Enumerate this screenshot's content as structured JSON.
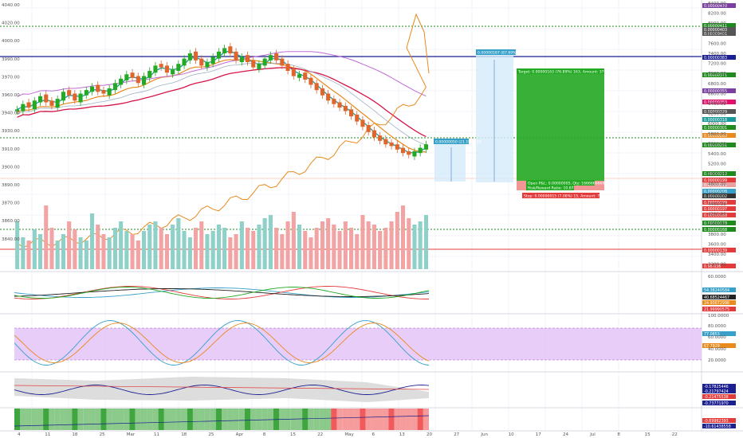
{
  "price_scale": {
    "ticks": [
      "8400.00",
      "8200.00",
      "8000.00",
      "7800.00",
      "7600.00",
      "7400.00",
      "7200.00",
      "7000.00",
      "6800.00",
      "6600.00",
      "6400.00",
      "6200.00",
      "6000.00",
      "5800.00",
      "5600.00",
      "5400.00",
      "5200.00",
      "5000.00",
      "4800.00",
      "4600.00",
      "4400.00",
      "4200.00",
      "4000.00",
      "3800.00",
      "3600.00",
      "3400.00",
      "3200.00"
    ],
    "left_ticks": [
      "4040.00",
      "4020.00",
      "4000.00",
      "3990.00",
      "3970.00",
      "3960.00",
      "3940.00",
      "3930.00",
      "3910.00",
      "3900.00",
      "3890.00",
      "3870.00",
      "3860.00",
      "3840.00"
    ]
  },
  "x_axis": [
    "4",
    "11",
    "18",
    "25",
    "Mar",
    "11",
    "18",
    "25",
    "Apr",
    "8",
    "15",
    "22",
    "May",
    "6",
    "13",
    "20",
    "27",
    "Jun",
    "10",
    "17",
    "24",
    "Jul",
    "8",
    "15",
    "22"
  ],
  "price_labels": [
    {
      "text": "0.00000470",
      "color": "#7b3fa0"
    },
    {
      "text": "0.00000411",
      "color": "#1e8a1e"
    },
    {
      "text": "0.00000403",
      "color": "#555555"
    },
    {
      "text": "0.00000401",
      "color": "#555555"
    },
    {
      "text": "0.00000383",
      "color": "#1b1f8f"
    },
    {
      "text": "0.00000371",
      "color": "#1e8a1e"
    },
    {
      "text": "0.00000355",
      "color": "#7b3fa0"
    },
    {
      "text": "0.00000350",
      "color": "#e0116a"
    },
    {
      "text": "0.00000329",
      "color": "#555555"
    },
    {
      "text": "0.00000318",
      "color": "#1a9a9a"
    },
    {
      "text": "0.00000301",
      "color": "#1e8a1e"
    },
    {
      "text": "0.00000280",
      "color": "#e88a1c"
    },
    {
      "text": "0.00000251",
      "color": "#1e8a1e"
    },
    {
      "text": "0.00000212",
      "color": "#1e8a1e"
    },
    {
      "text": "0.00000199",
      "color": "#e33b3b"
    },
    {
      "text": "0.00000211",
      "color": "#e8a0a0"
    },
    {
      "text": "0.00000208",
      "color": "#36a0c9"
    },
    {
      "text": "0.00000202",
      "color": "#333333"
    },
    {
      "text": "0.00000199",
      "color": "#e33b3b"
    },
    {
      "text": "0.00000197",
      "color": "#e33b3b"
    },
    {
      "text": "0.00000188",
      "color": "#e33b3b"
    },
    {
      "text": "0.00000178",
      "color": "#1e8a1e"
    },
    {
      "text": "0.00000168",
      "color": "#1e8a1e"
    },
    {
      "text": "0.00000139",
      "color": "#e33b3b"
    },
    {
      "text": "0.98.036",
      "color": "#e33b3b"
    }
  ],
  "positions": {
    "target": {
      "text": "Target: 0.00000163 (76.89%) 163, Amount: 3716.67"
    },
    "open_pnl": {
      "text": "Open P&L: 0.00000005, Qty: 1666666666"
    },
    "rr": {
      "text": "Risk/Reward Ratio: 10.87"
    },
    "stop": {
      "text": "Stop: 0.00000015 (7.08%) 15, Amount: 750"
    },
    "measure_big": {
      "text": "0.00000187 (87.69%) 187"
    },
    "measure_small": {
      "text": "0.00000050 (21.19%) 50"
    }
  },
  "indicators": {
    "pane1_labels": [
      {
        "text": "54.38240584",
        "color": "#36a0c9"
      },
      {
        "text": "40.68524467",
        "color": "#222222"
      },
      {
        "text": "24.93672996",
        "color": "#e88a1c"
      },
      {
        "text": "21.99990575",
        "color": "#e33b3b"
      }
    ],
    "pane1_ticks": [
      "60.0000"
    ],
    "pane2_labels": [
      {
        "text": "77.0853",
        "color": "#36a0c9"
      },
      {
        "text": "67.7929",
        "color": "#e88a1c"
      }
    ],
    "pane2_ticks": [
      "100.0000",
      "80.0000",
      "60.0000",
      "40.0000",
      "20.0000"
    ],
    "pane3_labels": [
      {
        "text": "-0.17825446",
        "color": "#1b1f8f"
      },
      {
        "text": "-0.21797424",
        "color": "#1b1f8f"
      },
      {
        "text": "-0.21475538",
        "color": "#e33b3b"
      },
      {
        "text": "-0.73771970",
        "color": "#1b1f8f"
      }
    ],
    "pane4_labels": [
      {
        "text": "-0.69962393",
        "color": "#e33b3b"
      },
      {
        "text": "-10.61438558",
        "color": "#1b1f8f"
      }
    ]
  },
  "chart_data": {
    "type": "candlestick",
    "series": [
      {
        "name": "price",
        "values": [
          3940,
          3946,
          3942,
          3950,
          3955,
          3948,
          3944,
          3952,
          3960,
          3956,
          3950,
          3958,
          3962,
          3966,
          3960,
          3958,
          3964,
          3970,
          3975,
          3980,
          3976,
          3970,
          3978,
          3984,
          3990,
          3988,
          3982,
          3986,
          3992,
          3998,
          4004,
          3996,
          3990,
          3994,
          4000,
          4006,
          4010,
          4004,
          3996,
          4000,
          3994,
          3988,
          3992,
          3998,
          4002,
          3996,
          3990,
          3984,
          3978,
          3980,
          3974,
          3968,
          3962,
          3956,
          3950,
          3946,
          3942,
          3938,
          3932,
          3926,
          3920,
          3914,
          3908,
          3904,
          3900,
          3898,
          3894,
          3890,
          3888,
          3892,
          3896,
          3900
        ]
      }
    ],
    "volume": [
      30,
      20,
      18,
      25,
      22,
      40,
      26,
      18,
      22,
      30,
      25,
      20,
      18,
      35,
      28,
      22,
      20,
      26,
      30,
      24,
      22,
      18,
      24,
      28,
      30,
      26,
      22,
      28,
      32,
      24,
      20,
      26,
      30,
      22,
      24,
      28,
      26,
      20,
      22,
      30,
      26,
      24,
      28,
      32,
      34,
      26,
      22,
      30,
      36,
      28,
      24,
      20,
      26,
      30,
      32,
      28,
      24,
      30,
      26,
      22,
      34,
      30,
      28,
      24,
      26,
      30,
      36,
      40,
      32,
      28,
      30,
      34
    ],
    "candle_up": [
      1,
      1,
      0,
      1,
      1,
      0,
      0,
      1,
      1,
      0,
      0,
      1,
      1,
      1,
      0,
      0,
      1,
      1,
      1,
      1,
      0,
      0,
      1,
      1,
      1,
      0,
      0,
      1,
      1,
      1,
      1,
      0,
      0,
      1,
      1,
      1,
      1,
      0,
      0,
      1,
      0,
      0,
      1,
      1,
      1,
      0,
      0,
      0,
      0,
      1,
      0,
      0,
      0,
      0,
      0,
      0,
      0,
      0,
      0,
      0,
      0,
      0,
      0,
      0,
      0,
      0,
      0,
      0,
      0,
      1,
      1,
      1
    ],
    "ylim": [
      3830,
      4045
    ]
  }
}
